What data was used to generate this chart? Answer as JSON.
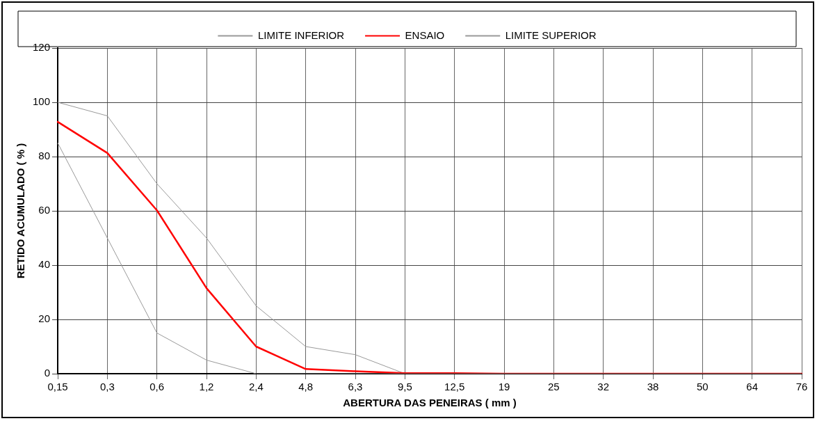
{
  "chart_data": {
    "type": "line",
    "xlabel": "ABERTURA DAS PENEIRAS ( mm )",
    "ylabel": "RETIDO ACUMULADO ( % )",
    "categories": [
      "0,15",
      "0,3",
      "0,6",
      "1,2",
      "2,4",
      "4,8",
      "6,3",
      "9,5",
      "12,5",
      "19",
      "25",
      "32",
      "38",
      "50",
      "64",
      "76"
    ],
    "series": [
      {
        "name": "LIMITE INFERIOR",
        "color": "#999999",
        "values": [
          85,
          50,
          15,
          5,
          0,
          0,
          0,
          0,
          0,
          0,
          0,
          0,
          0,
          0,
          0,
          0
        ]
      },
      {
        "name": "ENSAIO",
        "color": "#ff0000",
        "values": [
          92.8,
          81.3,
          60.2,
          31.5,
          10,
          1.7,
          0.9,
          0.2,
          0.2,
          0,
          0,
          0,
          0,
          0,
          0,
          0
        ]
      },
      {
        "name": "LIMITE SUPERIOR",
        "color": "#999999",
        "values": [
          100,
          95,
          70,
          50,
          25,
          10,
          7,
          0,
          0,
          0,
          0,
          0,
          0,
          0,
          0,
          0
        ]
      }
    ],
    "ylim": [
      0,
      120
    ],
    "yticks": [
      0,
      20,
      40,
      60,
      80,
      100,
      120
    ],
    "grid": true,
    "legend": "top",
    "marker": "none",
    "line_style": "solid"
  }
}
